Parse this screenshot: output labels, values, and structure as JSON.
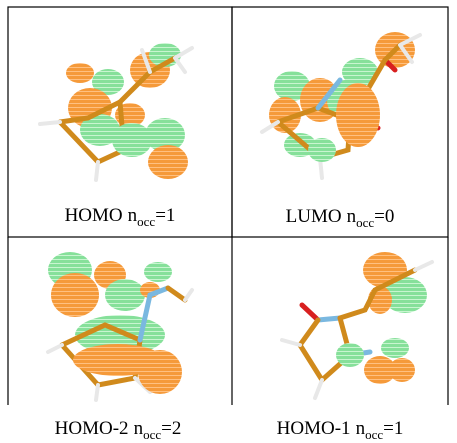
{
  "panels": [
    {
      "orbital": "HOMO",
      "symbol": "n",
      "subscript": "occ",
      "equals": "=1"
    },
    {
      "orbital": "LUMO",
      "symbol": "n",
      "subscript": "occ",
      "equals": "=0"
    },
    {
      "orbital": "HOMO-2",
      "symbol": "n",
      "subscript": "occ",
      "equals": "=2"
    },
    {
      "orbital": "HOMO-1",
      "symbol": "n",
      "subscript": "occ",
      "equals": "=1"
    }
  ]
}
